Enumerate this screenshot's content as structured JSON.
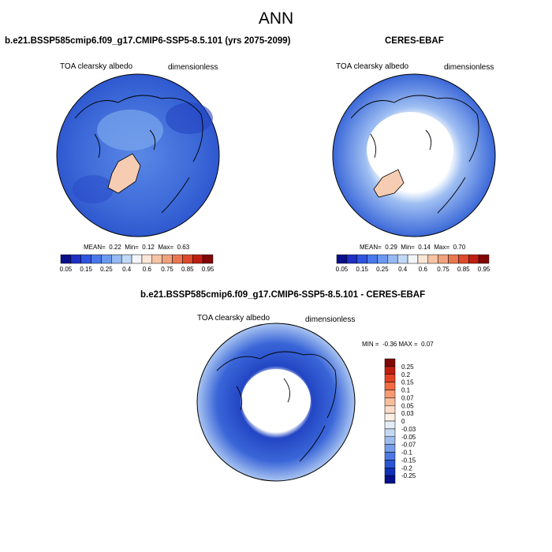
{
  "figure": {
    "title": "ANN",
    "colors": {
      "map_background": "#3f67d4",
      "ice_white": "#ffffff",
      "greenland_peach": "#f6cdb2",
      "coastline": "#000000"
    }
  },
  "panels": [
    {
      "title": "b.e21.BSSP585cmip6.f09_g17.CMIP6-SSP5-8.5.101 (yrs 2075-2099)",
      "variable": "TOA clearsky albedo",
      "units": "dimensionless",
      "stats": {
        "mean_label": "MEAN=",
        "mean": "0.22",
        "min_label": "Min=",
        "min": "0.12",
        "max_label": "Max=",
        "max": "0.63"
      }
    },
    {
      "title": "CERES-EBAF",
      "variable": "TOA clearsky albedo",
      "units": "dimensionless",
      "stats": {
        "mean_label": "MEAN=",
        "mean": "0.29",
        "min_label": "Min=",
        "min": "0.14",
        "max_label": "Max=",
        "max": "0.70"
      }
    },
    {
      "title": "b.e21.BSSP585cmip6.f09_g17.CMIP6-SSP5-8.5.101 - CERES-EBAF",
      "variable": "TOA clearsky albedo",
      "units": "dimensionless",
      "stats": {
        "min_label": "MIN =",
        "min": "-0.36",
        "max_label": "MAX =",
        "max": "0.07"
      }
    }
  ],
  "colorbar_horizontal": {
    "colors": [
      "#0a0f8c",
      "#1f2fc4",
      "#2f55e0",
      "#4a78ea",
      "#6c99ef",
      "#96b9f3",
      "#c2d8f7",
      "#f2f6fb",
      "#fbe6d8",
      "#f6c4a4",
      "#f1a27c",
      "#ea7650",
      "#de4a2b",
      "#bd1f12",
      "#800808"
    ],
    "labels": [
      "0.05",
      "0.15",
      "0.25",
      "0.4",
      "0.6",
      "0.75",
      "0.85",
      "0.95"
    ]
  },
  "colorbar_vertical": {
    "colors_top_to_bottom": [
      "#800808",
      "#c01e10",
      "#e34222",
      "#f36b42",
      "#f69a72",
      "#f8bd9b",
      "#fbdcc8",
      "#fdf0e6",
      "#e4edf7",
      "#c2d8f3",
      "#9cbcee",
      "#769de9",
      "#4d78e3",
      "#2a55d2",
      "#1030b8",
      "#05108c"
    ],
    "labels": [
      "0.25",
      "0.2",
      "0.15",
      "0.1",
      "0.07",
      "0.05",
      "0.03",
      "0",
      "-0.03",
      "-0.05",
      "-0.07",
      "-0.1",
      "-0.15",
      "-0.2",
      "-0.25"
    ]
  }
}
